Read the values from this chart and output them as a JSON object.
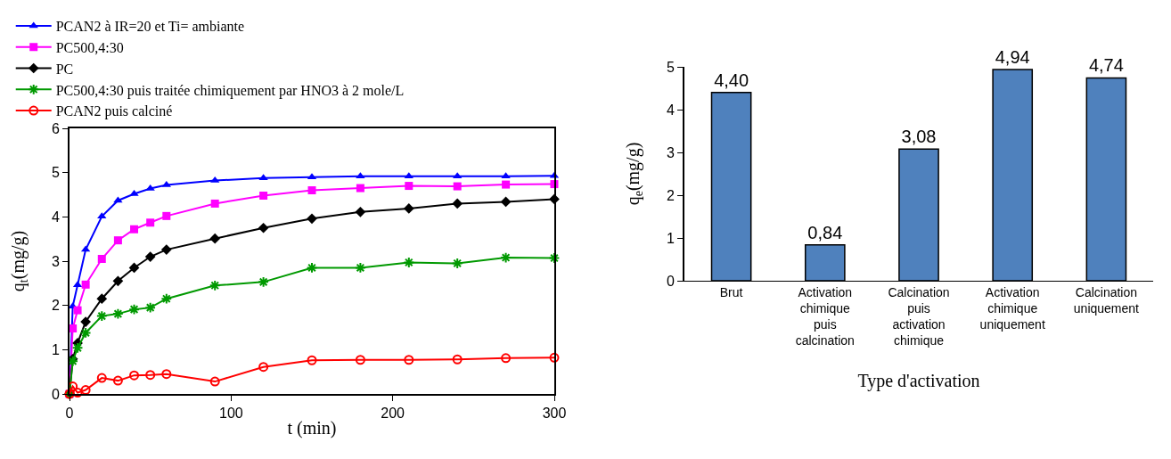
{
  "chart_data": [
    {
      "type": "line",
      "xlabel": "t (min)",
      "ylabel": "q$_{t}$(mg/g)",
      "x": [
        0,
        2,
        5,
        10,
        20,
        30,
        40,
        50,
        60,
        90,
        120,
        150,
        180,
        210,
        240,
        270,
        300
      ],
      "xlim": [
        0,
        300
      ],
      "xticks": [
        0,
        100,
        200,
        300
      ],
      "ylim": [
        0,
        6
      ],
      "yticks": [
        0,
        1,
        2,
        3,
        4,
        5,
        6
      ],
      "grid": false,
      "legend": "top left",
      "line_style": "solid",
      "series": [
        {
          "name": "PCAN2 à IR=20 et Ti= ambiante",
          "color": "#0000ff",
          "marker": "triangle",
          "values": [
            0,
            1.98,
            2.46,
            3.26,
            4.01,
            4.37,
            4.52,
            4.64,
            4.72,
            4.82,
            4.88,
            4.9,
            4.92,
            4.92,
            4.92,
            4.92,
            4.93
          ]
        },
        {
          "name": "PC500,4:30",
          "color": "#ff00ff",
          "marker": "square",
          "values": [
            0,
            1.48,
            1.89,
            2.47,
            3.05,
            3.47,
            3.72,
            3.87,
            4.02,
            4.3,
            4.48,
            4.6,
            4.65,
            4.7,
            4.69,
            4.73,
            4.74
          ]
        },
        {
          "name": "PC",
          "color": "#000000",
          "marker": "diamond",
          "values": [
            0,
            0.79,
            1.15,
            1.63,
            2.15,
            2.55,
            2.85,
            3.1,
            3.26,
            3.51,
            3.75,
            3.96,
            4.11,
            4.19,
            4.3,
            4.34,
            4.4
          ]
        },
        {
          "name": "PC500,4:30 puis traitée chimiquement par HNO3 à 2 mole/L",
          "color": "#009900",
          "marker": "cross",
          "values": [
            0,
            0.74,
            1.04,
            1.38,
            1.76,
            1.81,
            1.91,
            1.95,
            2.15,
            2.45,
            2.53,
            2.85,
            2.85,
            2.97,
            2.95,
            3.08,
            3.07
          ]
        },
        {
          "name": "PCAN2 puis calciné",
          "color": "#ff0000",
          "marker": "circle",
          "values": [
            0,
            0.17,
            0.03,
            0.09,
            0.36,
            0.3,
            0.42,
            0.43,
            0.45,
            0.28,
            0.61,
            0.76,
            0.77,
            0.77,
            0.78,
            0.81,
            0.82
          ]
        }
      ]
    },
    {
      "type": "bar",
      "xlabel": "Type d'activation",
      "ylabel": "q$_{e}$(mg/g)",
      "categories": [
        "Brut",
        "Activation chimique puis calcination",
        "Calcination puis activation chimique",
        "Activation chimique uniquement",
        "Calcination uniquement"
      ],
      "values": [
        4.4,
        0.84,
        3.08,
        4.94,
        4.74
      ],
      "value_labels": [
        "4,40",
        "0,84",
        "3,08",
        "4,94",
        "4,74"
      ],
      "color": "#4f81bd",
      "ylim": [
        0,
        5
      ],
      "yticks": [
        0,
        1,
        2,
        3,
        4,
        5
      ],
      "grid": false,
      "legend": false
    }
  ]
}
